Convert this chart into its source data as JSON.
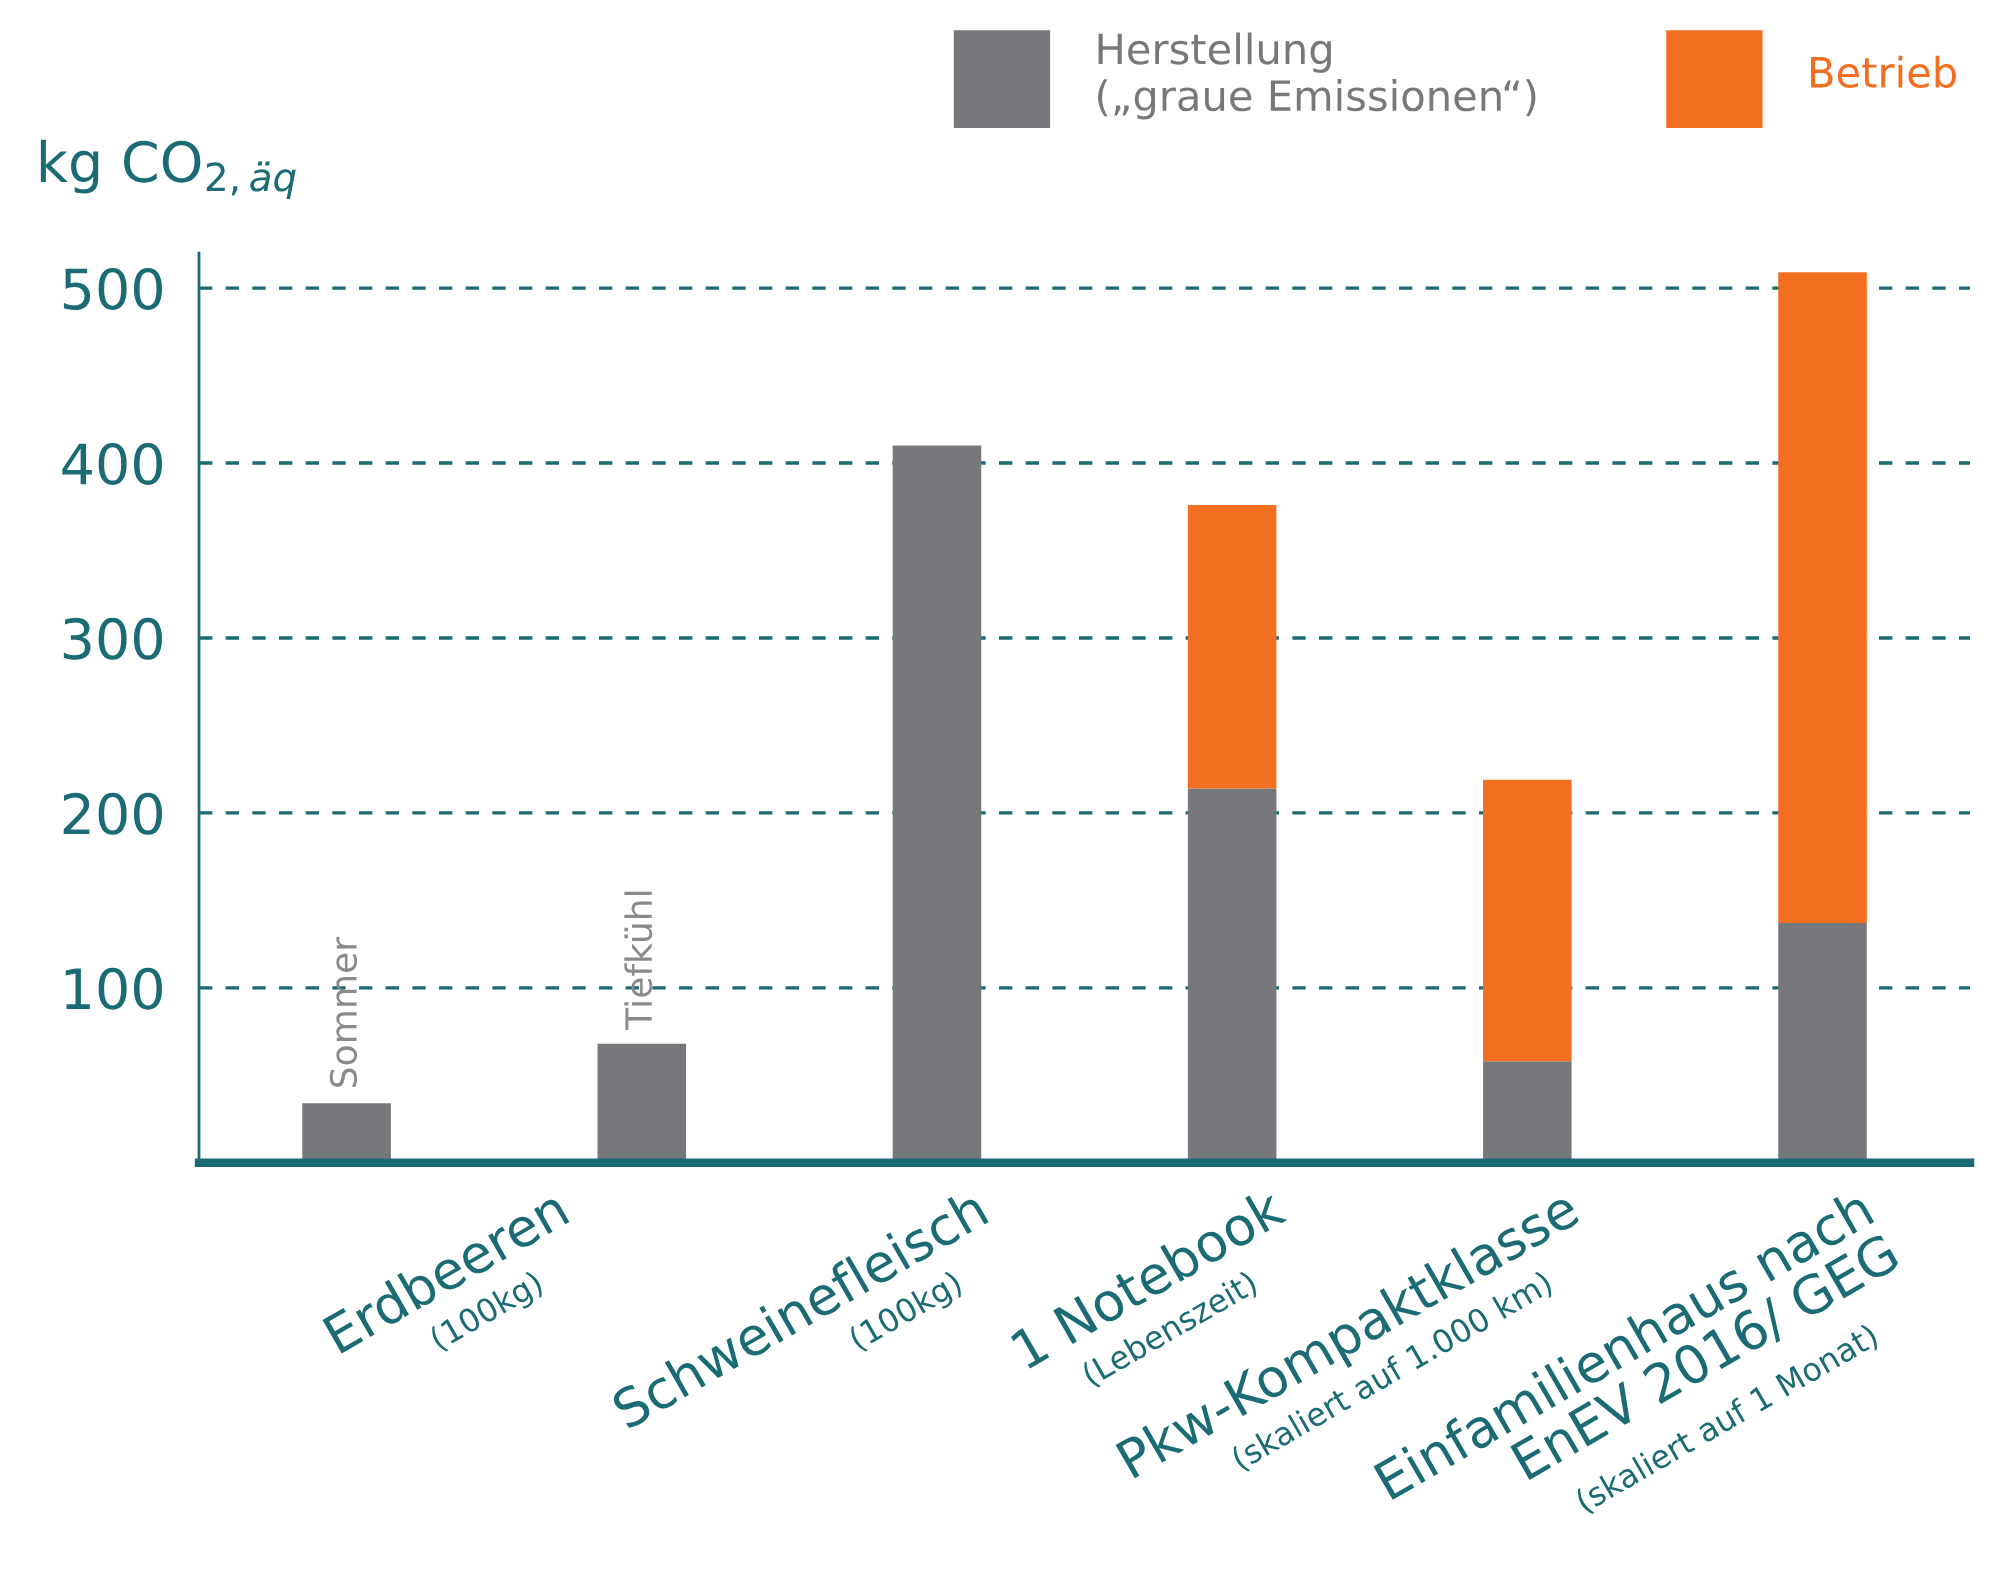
{
  "chart_data": {
    "type": "bar",
    "stacked": true,
    "ylabel": "kg CO$_{2,äq}$",
    "categories": [
      "Sommer",
      "Tiefkühl",
      "Schweinefleisch\n(100kg)",
      "1 Notebook\n(Lebenszeit)",
      "Pkw-Kompaktklasse\n(skaliert auf 1.000 km)",
      "Einfamilienhaus nach\nEnEV 2016/ GEG\n(skaliert auf 1 Monat)"
    ],
    "series": [
      {
        "name": "Herstellung\n(„graue Emissionen“)",
        "color": "#77787b",
        "values": [
          34,
          68,
          410,
          214,
          58,
          137
        ]
      },
      {
        "name": "Betrieb",
        "color": "#f26f21",
        "values": [
          null,
          null,
          null,
          162,
          161,
          372
        ]
      }
    ],
    "annotations": [
      "Erdbeeren\n(100kg)"
    ],
    "ylim": [
      0,
      520
    ],
    "yticks": [
      100,
      200,
      300,
      400,
      500
    ],
    "grid": "y",
    "line_style": "dashed",
    "legend": "top right"
  }
}
